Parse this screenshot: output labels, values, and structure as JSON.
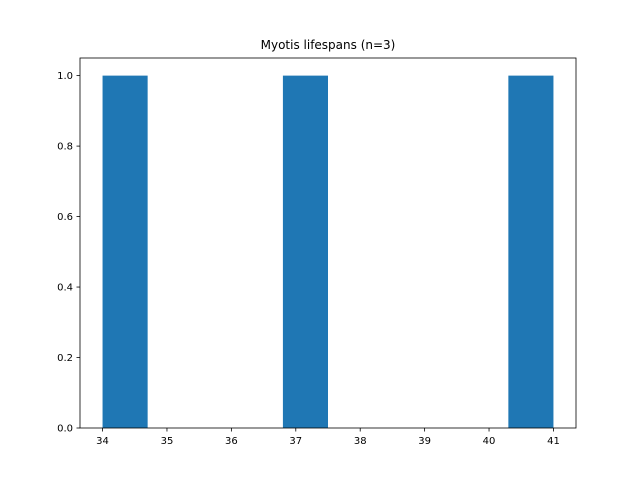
{
  "chart_data": {
    "type": "bar",
    "title": "Myotis lifespans (n=3)",
    "xlabel": "",
    "ylabel": "",
    "bin_edges": [
      34.0,
      34.7,
      35.4,
      36.1,
      36.8,
      37.5,
      38.2,
      38.9,
      39.6,
      40.3,
      41.0
    ],
    "counts": [
      1,
      0,
      0,
      0,
      1,
      0,
      0,
      0,
      0,
      1
    ],
    "xlim": [
      33.65,
      41.35
    ],
    "ylim": [
      0,
      1.05
    ],
    "xticks": [
      34,
      35,
      36,
      37,
      38,
      39,
      40,
      41
    ],
    "yticks": [
      0.0,
      0.2,
      0.4,
      0.6,
      0.8,
      1.0
    ],
    "grid": false,
    "legend": "none",
    "bar_color": "#1f77b4"
  }
}
